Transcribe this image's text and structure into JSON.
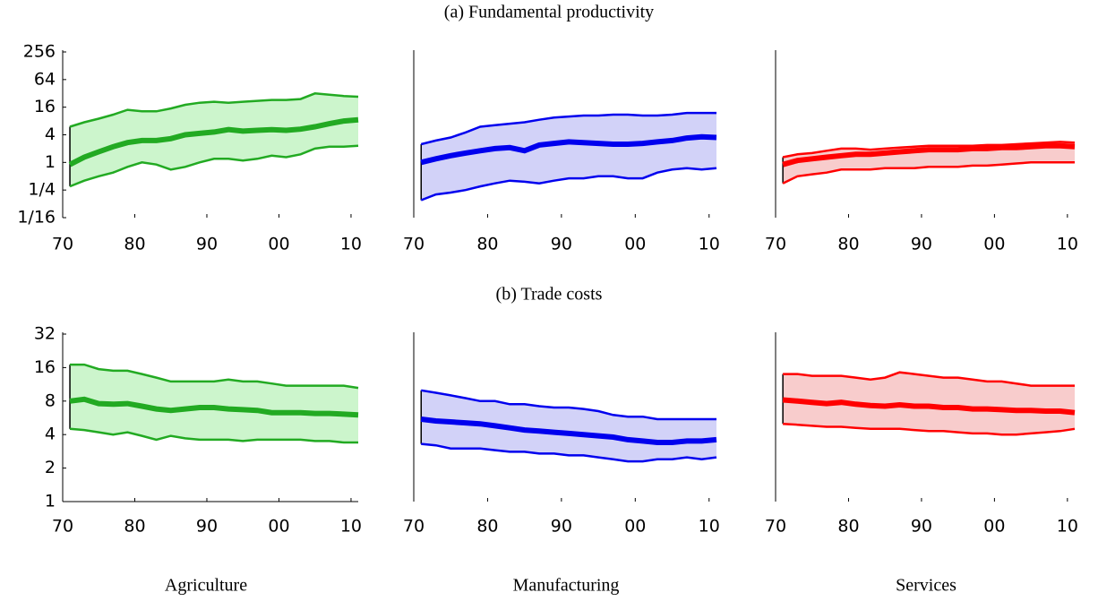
{
  "chart_data": [
    {
      "type": "band-line",
      "title": "(a) Fundamental productivity",
      "yscale": "log",
      "x": [
        1971,
        1973,
        1975,
        1977,
        1979,
        1981,
        1983,
        1985,
        1987,
        1989,
        1991,
        1993,
        1995,
        1997,
        1999,
        2001,
        2003,
        2005,
        2007,
        2009,
        2011
      ],
      "xlim": [
        1970,
        2011
      ],
      "xticks": [
        {
          "value": 1970,
          "label": "70"
        },
        {
          "value": 1980,
          "label": "80"
        },
        {
          "value": 1990,
          "label": "90"
        },
        {
          "value": 2000,
          "label": "00"
        },
        {
          "value": 2010,
          "label": "10"
        }
      ],
      "ylim": [
        0.0625,
        256
      ],
      "yticks": [
        {
          "value": 0.0625,
          "label": "1/16"
        },
        {
          "value": 0.25,
          "label": "1/4"
        },
        1,
        4,
        16,
        64,
        256
      ],
      "panels": [
        {
          "color": "#22aa22",
          "fill": "#ccf5cc",
          "median": [
            0.9,
            1.3,
            1.7,
            2.2,
            2.7,
            3.0,
            3.0,
            3.3,
            4.0,
            4.3,
            4.6,
            5.2,
            4.8,
            5.0,
            5.2,
            5.0,
            5.3,
            6.0,
            7.0,
            8.0,
            8.5
          ],
          "upper": [
            6,
            7.5,
            9,
            11,
            14,
            13,
            13,
            15,
            18,
            20,
            21,
            20,
            21,
            22,
            23,
            23,
            24,
            32,
            30,
            28,
            27
          ],
          "lower": [
            0.3,
            0.4,
            0.5,
            0.6,
            0.8,
            1.0,
            0.9,
            0.7,
            0.8,
            1.0,
            1.2,
            1.2,
            1.1,
            1.2,
            1.4,
            1.3,
            1.5,
            2.0,
            2.2,
            2.2,
            2.3
          ]
        },
        {
          "color": "#0000ee",
          "fill": "#d2d2f8",
          "median": [
            1.0,
            1.2,
            1.4,
            1.6,
            1.8,
            2.0,
            2.1,
            1.8,
            2.4,
            2.6,
            2.8,
            2.7,
            2.6,
            2.5,
            2.5,
            2.6,
            2.8,
            3.0,
            3.4,
            3.6,
            3.5
          ],
          "upper": [
            2.5,
            3,
            3.5,
            4.5,
            6,
            6.5,
            7,
            7.5,
            8.5,
            9.5,
            10,
            10.5,
            10.5,
            11,
            11,
            10.5,
            10.5,
            11,
            12,
            12,
            12
          ],
          "lower": [
            0.15,
            0.2,
            0.22,
            0.25,
            0.3,
            0.35,
            0.4,
            0.38,
            0.35,
            0.4,
            0.45,
            0.45,
            0.5,
            0.5,
            0.45,
            0.45,
            0.6,
            0.7,
            0.75,
            0.7,
            0.75
          ]
        },
        {
          "color": "#ff0000",
          "fill": "#f8cccc",
          "median": [
            0.9,
            1.1,
            1.2,
            1.3,
            1.4,
            1.5,
            1.5,
            1.6,
            1.7,
            1.8,
            1.9,
            1.9,
            1.9,
            2.0,
            2.0,
            2.1,
            2.1,
            2.2,
            2.3,
            2.3,
            2.2
          ],
          "upper": [
            1.3,
            1.5,
            1.6,
            1.8,
            2.0,
            2.0,
            1.9,
            2.0,
            2.1,
            2.2,
            2.3,
            2.3,
            2.3,
            2.3,
            2.4,
            2.4,
            2.5,
            2.6,
            2.7,
            2.8,
            2.7
          ],
          "lower": [
            0.35,
            0.5,
            0.55,
            0.6,
            0.7,
            0.7,
            0.7,
            0.75,
            0.75,
            0.75,
            0.8,
            0.8,
            0.8,
            0.85,
            0.85,
            0.9,
            0.95,
            1.0,
            1.0,
            1.0,
            1.0
          ]
        }
      ]
    },
    {
      "type": "band-line",
      "title": "(b) Trade costs",
      "yscale": "log",
      "x": [
        1971,
        1973,
        1975,
        1977,
        1979,
        1981,
        1983,
        1985,
        1987,
        1989,
        1991,
        1993,
        1995,
        1997,
        1999,
        2001,
        2003,
        2005,
        2007,
        2009,
        2011
      ],
      "xlim": [
        1970,
        2011
      ],
      "xticks": [
        {
          "value": 1970,
          "label": "70"
        },
        {
          "value": 1980,
          "label": "80"
        },
        {
          "value": 1990,
          "label": "90"
        },
        {
          "value": 2000,
          "label": "00"
        },
        {
          "value": 2010,
          "label": "10"
        }
      ],
      "ylim": [
        1,
        32
      ],
      "yticks": [
        1,
        2,
        4,
        8,
        16,
        32
      ],
      "panels": [
        {
          "color": "#22aa22",
          "fill": "#ccf5cc",
          "median": [
            8,
            8.3,
            7.6,
            7.5,
            7.6,
            7.2,
            6.8,
            6.6,
            6.8,
            7.0,
            7.0,
            6.8,
            6.7,
            6.6,
            6.3,
            6.3,
            6.3,
            6.2,
            6.2,
            6.1,
            6.0
          ],
          "upper": [
            17,
            17,
            15.5,
            15,
            15,
            14,
            13,
            12,
            12,
            12,
            12,
            12.5,
            12,
            12,
            11.5,
            11,
            11,
            11,
            11,
            11,
            10.5
          ],
          "lower": [
            4.5,
            4.4,
            4.2,
            4.0,
            4.2,
            3.9,
            3.6,
            3.9,
            3.7,
            3.6,
            3.6,
            3.6,
            3.5,
            3.6,
            3.6,
            3.6,
            3.6,
            3.5,
            3.5,
            3.4,
            3.4
          ]
        },
        {
          "color": "#0000ee",
          "fill": "#d2d2f8",
          "median": [
            5.5,
            5.3,
            5.2,
            5.1,
            5.0,
            4.8,
            4.6,
            4.4,
            4.3,
            4.2,
            4.1,
            4.0,
            3.9,
            3.8,
            3.6,
            3.5,
            3.4,
            3.4,
            3.5,
            3.5,
            3.6
          ],
          "upper": [
            10,
            9.5,
            9,
            8.5,
            8,
            8,
            7.5,
            7.5,
            7.2,
            7,
            7,
            6.8,
            6.5,
            6,
            5.8,
            5.8,
            5.5,
            5.5,
            5.5,
            5.5,
            5.5
          ],
          "lower": [
            3.3,
            3.2,
            3.0,
            3.0,
            3.0,
            2.9,
            2.8,
            2.8,
            2.7,
            2.7,
            2.6,
            2.6,
            2.5,
            2.4,
            2.3,
            2.3,
            2.4,
            2.4,
            2.5,
            2.4,
            2.5
          ]
        },
        {
          "color": "#ff0000",
          "fill": "#f8cccc",
          "median": [
            8.2,
            8.0,
            7.8,
            7.6,
            7.8,
            7.5,
            7.3,
            7.2,
            7.4,
            7.2,
            7.2,
            7.0,
            7.0,
            6.8,
            6.8,
            6.7,
            6.6,
            6.6,
            6.5,
            6.5,
            6.3
          ],
          "upper": [
            14,
            14,
            13.5,
            13.5,
            13.5,
            13,
            12.5,
            13,
            14.5,
            14,
            13.5,
            13,
            13,
            12.5,
            12,
            12,
            11.5,
            11,
            11,
            11,
            11
          ],
          "lower": [
            5,
            4.9,
            4.8,
            4.7,
            4.7,
            4.6,
            4.5,
            4.5,
            4.5,
            4.4,
            4.3,
            4.3,
            4.2,
            4.1,
            4.1,
            4.0,
            4.0,
            4.1,
            4.2,
            4.3,
            4.5
          ]
        }
      ]
    }
  ],
  "columns": [
    "Agriculture",
    "Manufacturing",
    "Services"
  ]
}
